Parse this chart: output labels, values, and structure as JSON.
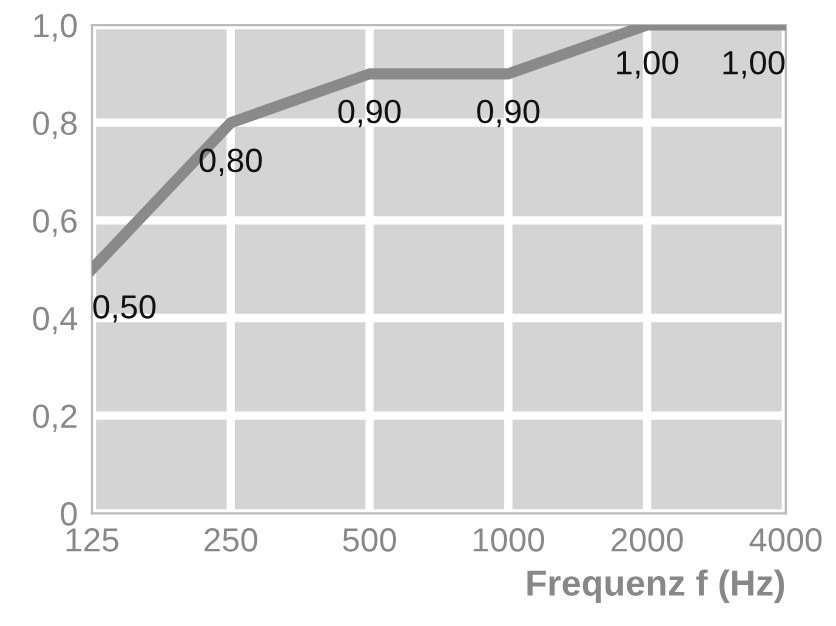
{
  "chart_data": {
    "type": "line",
    "categories": [
      "125",
      "250",
      "500",
      "1000",
      "2000",
      "4000"
    ],
    "series": [
      {
        "color": "#8a8a8a",
        "values": [
          0.5,
          0.8,
          0.9,
          0.9,
          1.0,
          1.0
        ],
        "value_labels": [
          "0,50",
          "0,80",
          "0,90",
          "0,90",
          "1,00",
          "1,00"
        ]
      }
    ],
    "xlabel": "Frequenz f (Hz)",
    "ylim": [
      0,
      1.0
    ],
    "yticks": [
      {
        "value": 0,
        "label": "0"
      },
      {
        "value": 0.2,
        "label": "0,2"
      },
      {
        "value": 0.4,
        "label": "0,4"
      },
      {
        "value": 0.6,
        "label": "0,6"
      },
      {
        "value": 0.8,
        "label": "0,8"
      },
      {
        "value": 1.0,
        "label": "1,0"
      }
    ],
    "grid": true,
    "marker": "none",
    "line_style": "solid"
  }
}
